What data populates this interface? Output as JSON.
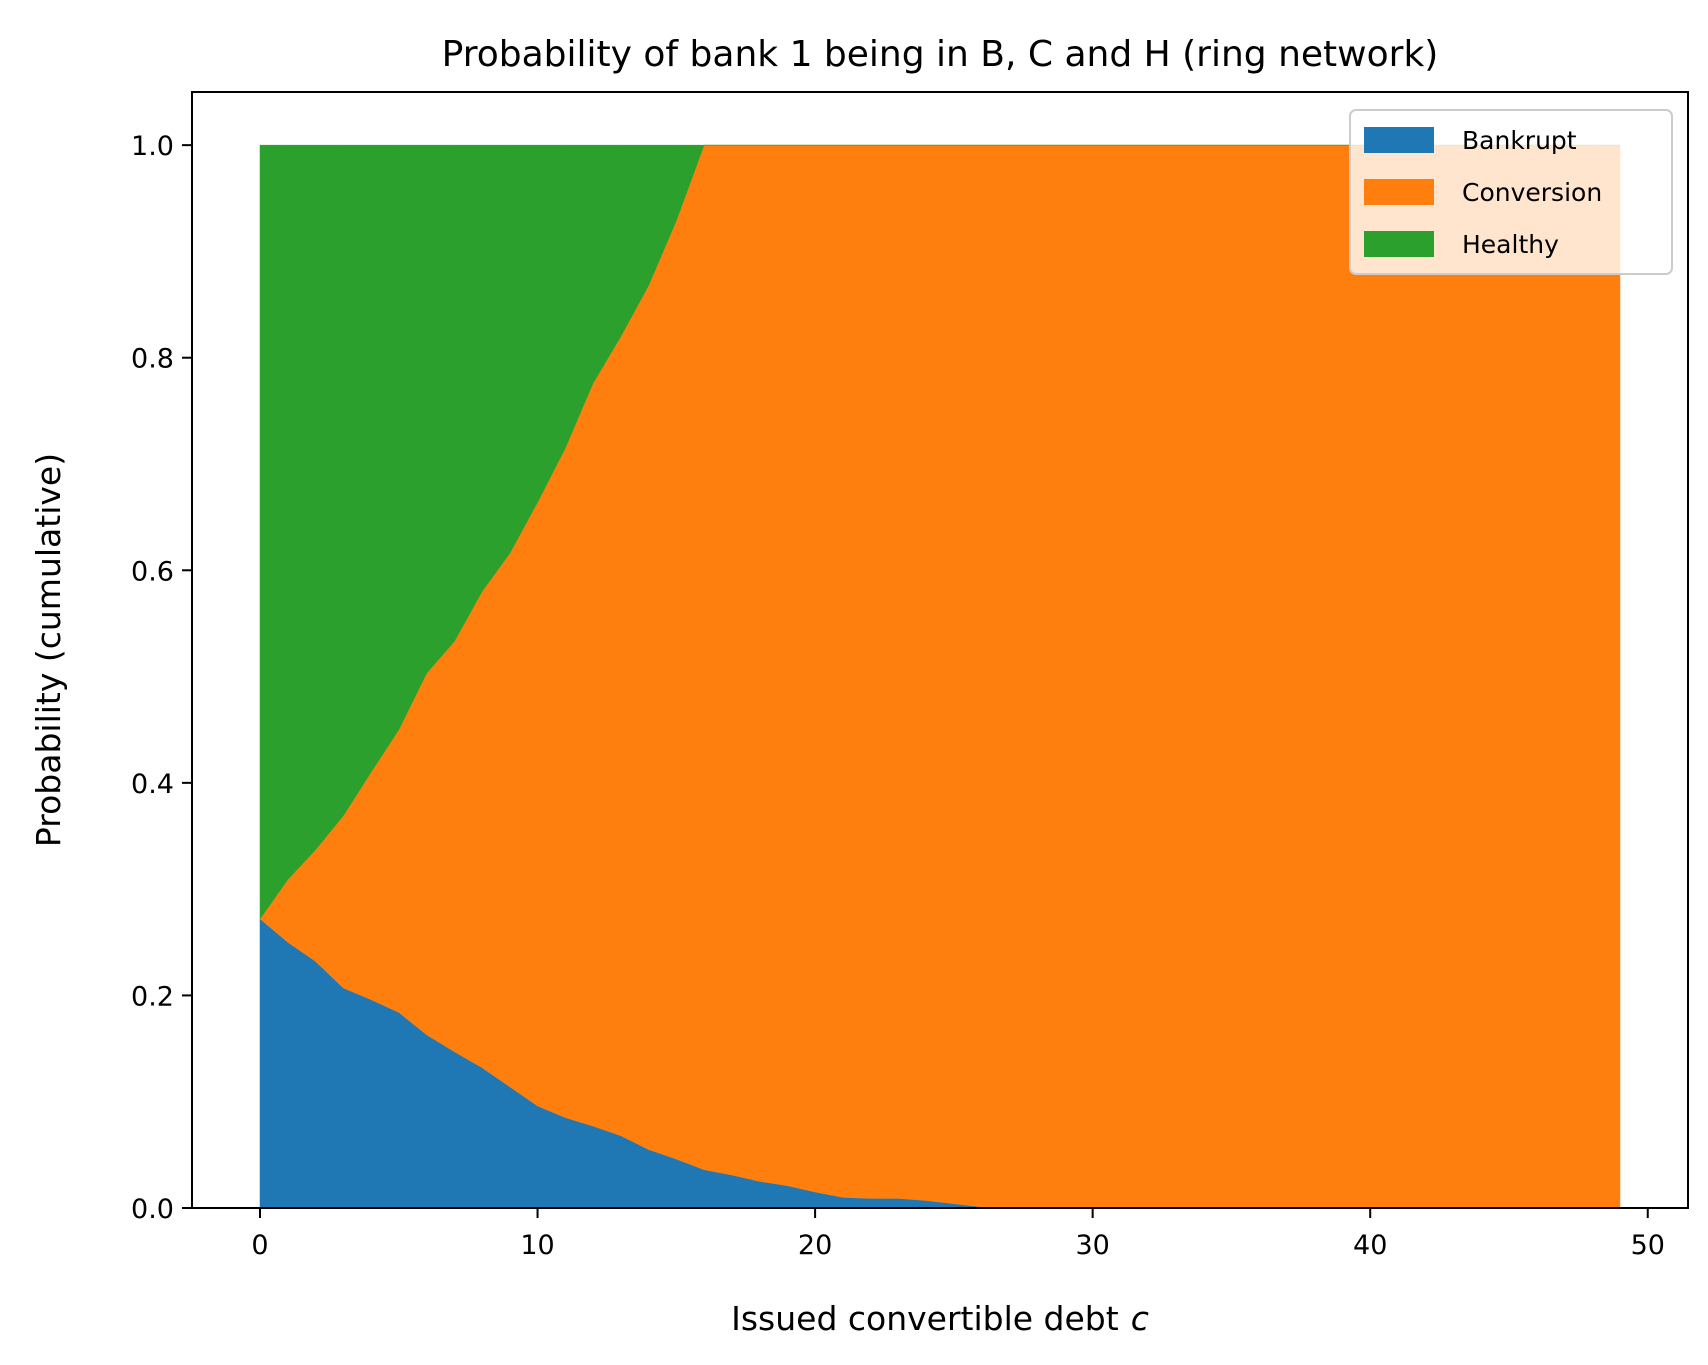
{
  "chart_data": {
    "type": "area",
    "title": "Probability of bank 1 being in B, C and H (ring network)",
    "xlabel": "Issued convertible debt",
    "xlabel_var": "c",
    "ylabel": "Probability (cumulative)",
    "xlim": [
      -2.45,
      51.45
    ],
    "ylim": [
      0,
      1.05
    ],
    "xticks": [
      0,
      10,
      20,
      30,
      40,
      50
    ],
    "yticks": [
      0.0,
      0.2,
      0.4,
      0.6,
      0.8,
      1.0
    ],
    "xtick_labels": [
      "0",
      "10",
      "20",
      "30",
      "40",
      "50"
    ],
    "ytick_labels": [
      "0.0",
      "0.2",
      "0.4",
      "0.6",
      "0.8",
      "1.0"
    ],
    "legend_position": "upper right",
    "stacked": true,
    "x": [
      0,
      1,
      2,
      3,
      4,
      5,
      6,
      7,
      8,
      9,
      10,
      11,
      12,
      13,
      14,
      15,
      16,
      17,
      18,
      19,
      20,
      21,
      22,
      23,
      24,
      25,
      26,
      27,
      28,
      29,
      30,
      31,
      32,
      33,
      34,
      35,
      36,
      37,
      38,
      39,
      40,
      41,
      42,
      43,
      44,
      45,
      46,
      47,
      48,
      49
    ],
    "series": [
      {
        "name": "Bankrupt",
        "color": "#1f77b4",
        "values": [
          0.272,
          0.25,
          0.232,
          0.207,
          0.196,
          0.184,
          0.163,
          0.147,
          0.132,
          0.114,
          0.096,
          0.085,
          0.077,
          0.068,
          0.055,
          0.046,
          0.036,
          0.031,
          0.025,
          0.021,
          0.015,
          0.01,
          0.009,
          0.009,
          0.007,
          0.004,
          0.001,
          0,
          0,
          0,
          0,
          0,
          0,
          0,
          0,
          0,
          0,
          0,
          0,
          0,
          0,
          0,
          0,
          0,
          0,
          0,
          0,
          0,
          0,
          0
        ]
      },
      {
        "name": "Conversion",
        "color": "#ff7f0e",
        "values": [
          0,
          0.059,
          0.105,
          0.162,
          0.214,
          0.266,
          0.34,
          0.386,
          0.448,
          0.502,
          0.568,
          0.63,
          0.699,
          0.752,
          0.813,
          0.883,
          0.964,
          0.969,
          0.975,
          0.979,
          0.985,
          0.99,
          0.991,
          0.991,
          0.993,
          0.996,
          0.999,
          1,
          1,
          1,
          1,
          1,
          1,
          1,
          1,
          1,
          1,
          1,
          1,
          1,
          1,
          1,
          1,
          1,
          1,
          1,
          1,
          1,
          1,
          1
        ]
      },
      {
        "name": "Healthy",
        "color": "#2ca02c",
        "values": [
          0.728,
          0.691,
          0.663,
          0.631,
          0.59,
          0.55,
          0.497,
          0.467,
          0.42,
          0.384,
          0.336,
          0.285,
          0.224,
          0.18,
          0.132,
          0.071,
          0,
          0,
          0,
          0,
          0,
          0,
          0,
          0,
          0,
          0,
          0,
          0,
          0,
          0,
          0,
          0,
          0,
          0,
          0,
          0,
          0,
          0,
          0,
          0,
          0,
          0,
          0,
          0,
          0,
          0,
          0,
          0,
          0,
          0
        ]
      }
    ]
  }
}
